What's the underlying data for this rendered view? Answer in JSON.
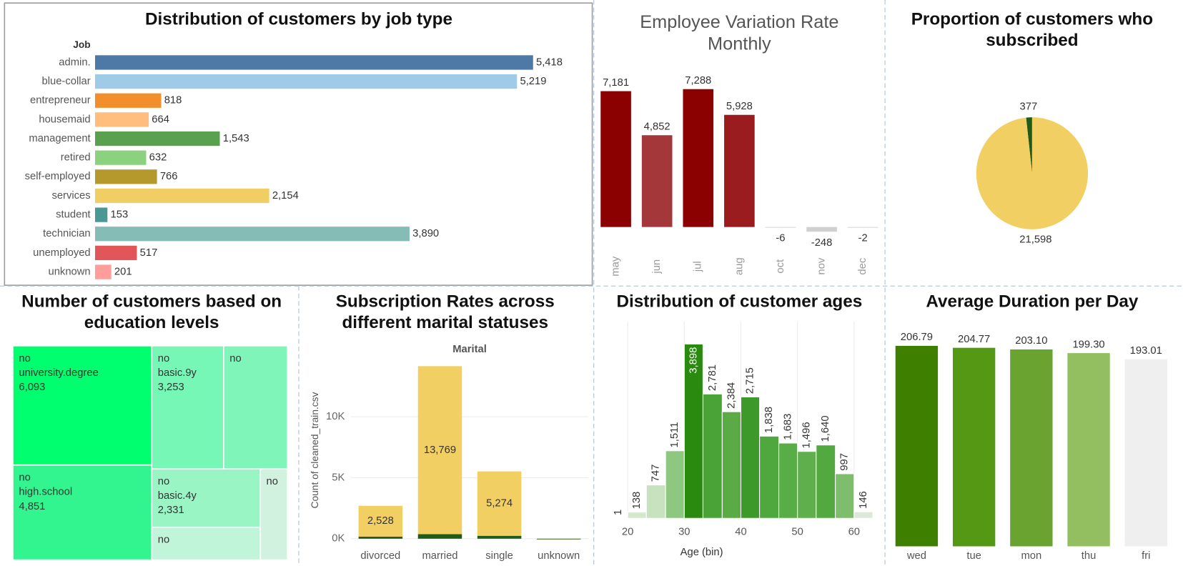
{
  "chart_data": [
    {
      "type": "hbar",
      "title": "Distribution of customers by job type",
      "y_label": "Job",
      "categories": [
        "admin.",
        "blue-collar",
        "entrepreneur",
        "housemaid",
        "management",
        "retired",
        "self-employed",
        "services",
        "student",
        "technician",
        "unemployed",
        "unknown"
      ],
      "values": [
        5418,
        5219,
        818,
        664,
        1543,
        632,
        766,
        2154,
        153,
        3890,
        517,
        201
      ],
      "value_labels": [
        "5,418",
        "5,219",
        "818",
        "664",
        "1,543",
        "632",
        "766",
        "2,154",
        "153",
        "3,890",
        "517",
        "201"
      ],
      "colors": [
        "#4e79a7",
        "#a0cbe8",
        "#f28e2b",
        "#ffbe7d",
        "#59a14f",
        "#8cd17d",
        "#b6992d",
        "#f1ce63",
        "#499894",
        "#86bcb6",
        "#e15759",
        "#ff9d9a"
      ],
      "xlim": [
        0,
        6150
      ]
    },
    {
      "type": "bar",
      "title": "Employee Variation Rate Monthly",
      "categories": [
        "may",
        "jun",
        "jul",
        "aug",
        "oct",
        "nov",
        "dec"
      ],
      "values": [
        7181,
        4852,
        7288,
        5928,
        -6,
        -248,
        -2
      ],
      "value_labels": [
        "7,181",
        "4,852",
        "7,288",
        "5,928",
        "-6",
        "-248",
        "-2"
      ],
      "colors": [
        "#8b0000",
        "#a3373a",
        "#8b0000",
        "#9a1c1f",
        "#d6d6d6",
        "#d0d0d0",
        "#d6d6d6"
      ],
      "ylim": [
        -1400,
        8000
      ]
    },
    {
      "type": "pie",
      "title": "Proportion of customers who subscribed",
      "values": [
        377,
        21598
      ],
      "value_labels": [
        "377",
        "21,598"
      ],
      "colors": [
        "#1f5c1a",
        "#f2cf63"
      ]
    },
    {
      "type": "treemap",
      "title": "Number of customers based on education levels",
      "items": [
        {
          "subscribed": "no",
          "education": "university.degree",
          "value": 6093,
          "value_label": "6,093",
          "color": "#00ff6e"
        },
        {
          "subscribed": "no",
          "education": "high.school",
          "value": 4851,
          "value_label": "4,851",
          "color": "#33f58f"
        },
        {
          "subscribed": "no",
          "education": "basic.9y",
          "value": 3253,
          "value_label": "3,253",
          "color": "#77f7b5"
        },
        {
          "subscribed": "no",
          "education": null,
          "value": 2890,
          "value_label": null,
          "color": "#80f5b9"
        },
        {
          "subscribed": "no",
          "education": "basic.4y",
          "value": 2331,
          "value_label": "2,331",
          "color": "#9af5c5"
        },
        {
          "subscribed": "no",
          "education": null,
          "value": 1306,
          "value_label": null,
          "color": "#c1f5d9"
        },
        {
          "subscribed": "no",
          "education": null,
          "value": 911,
          "value_label": null,
          "color": "#d2f2e0"
        }
      ]
    },
    {
      "type": "stacked_bar",
      "title": "Subscription Rates across different marital statuses",
      "header": "Marital",
      "y_label": "Count of cleaned_train.csv",
      "categories": [
        "divorced",
        "married",
        "single",
        "unknown"
      ],
      "series": [
        {
          "color": "#1f5c1a",
          "values": [
            170,
            370,
            240,
            2
          ]
        },
        {
          "color": "#f2cf63",
          "values": [
            2528,
            13769,
            5274,
            40
          ],
          "value_labels": [
            "2,528",
            "13,769",
            "5,274",
            null
          ]
        }
      ],
      "ylim": [
        -500,
        15000
      ],
      "yticks": [
        {
          "value": 0,
          "label": "0K"
        },
        {
          "value": 5000,
          "label": "5K"
        },
        {
          "value": 10000,
          "label": "10K"
        }
      ],
      "grid": true
    },
    {
      "type": "histogram",
      "title": "Distribution of customer ages",
      "x_label": "Age (bin)",
      "bins": [
        16.7,
        20,
        23.3,
        26.7,
        30,
        33.3,
        36.7,
        40,
        43.3,
        46.7,
        50,
        53.3,
        56.7,
        60,
        63.3
      ],
      "values": [
        1,
        138,
        747,
        1511,
        3898,
        2781,
        2384,
        2715,
        1838,
        1683,
        1496,
        1640,
        997,
        146
      ],
      "value_labels": [
        "1",
        "138",
        "747",
        "1,511",
        "3,898",
        "2,781",
        "2,384",
        "2,715",
        "1,838",
        "1,683",
        "1,496",
        "1,640",
        "997",
        "146"
      ],
      "colors": [
        "#e6efe2",
        "#d4e8cd",
        "#c7e2bf",
        "#8ec880",
        "#2a8a10",
        "#4aa337",
        "#5aab46",
        "#3d9a2a",
        "#4fa83e",
        "#58ad47",
        "#5fb04c",
        "#52a93f",
        "#7dbd6c",
        "#dde9d8"
      ],
      "xlim": [
        16.4,
        64.4
      ],
      "xticks": [
        20,
        30,
        40,
        50,
        60
      ],
      "ylim": [
        0,
        4400
      ],
      "grid": true
    },
    {
      "type": "bar",
      "title": "Average Duration per Day",
      "categories": [
        "wed",
        "tue",
        "mon",
        "thu",
        "fri"
      ],
      "values": [
        206.79,
        204.77,
        203.1,
        199.3,
        193.01
      ],
      "value_labels": [
        "206.79",
        "204.77",
        "203.10",
        "199.30",
        "193.01"
      ],
      "colors": [
        "#3f7f00",
        "#559814",
        "#6aa32f",
        "#93bf60",
        "#efefef"
      ],
      "ylim": [
        0,
        224
      ]
    }
  ]
}
